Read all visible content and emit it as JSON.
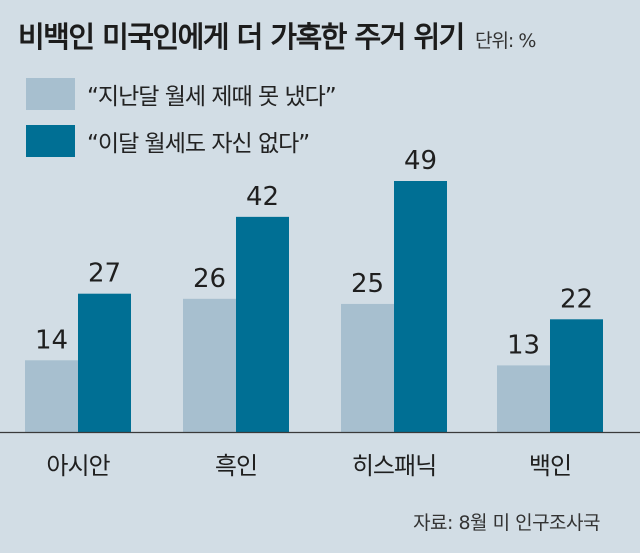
{
  "header": {
    "title": "비백인 미국인에게 더 가혹한 주거 위기",
    "unit": "단위: %"
  },
  "colors": {
    "last_month": "#a7bfcf",
    "this_month": "#006f94",
    "background": "#d2dde5"
  },
  "chart_data": {
    "type": "bar",
    "categories": [
      "아시안",
      "흑인",
      "히스패닉",
      "백인"
    ],
    "series": [
      {
        "name": "“지난달 월세 제때 못 냈다”",
        "values": [
          14,
          26,
          25,
          13
        ]
      },
      {
        "name": "“이달 월세도 자신 없다”",
        "values": [
          27,
          42,
          49,
          22
        ]
      }
    ],
    "ylim": [
      0,
      49
    ],
    "grid": false,
    "legend": "top-left"
  },
  "source": "자료: 8월 미 인구조사국"
}
